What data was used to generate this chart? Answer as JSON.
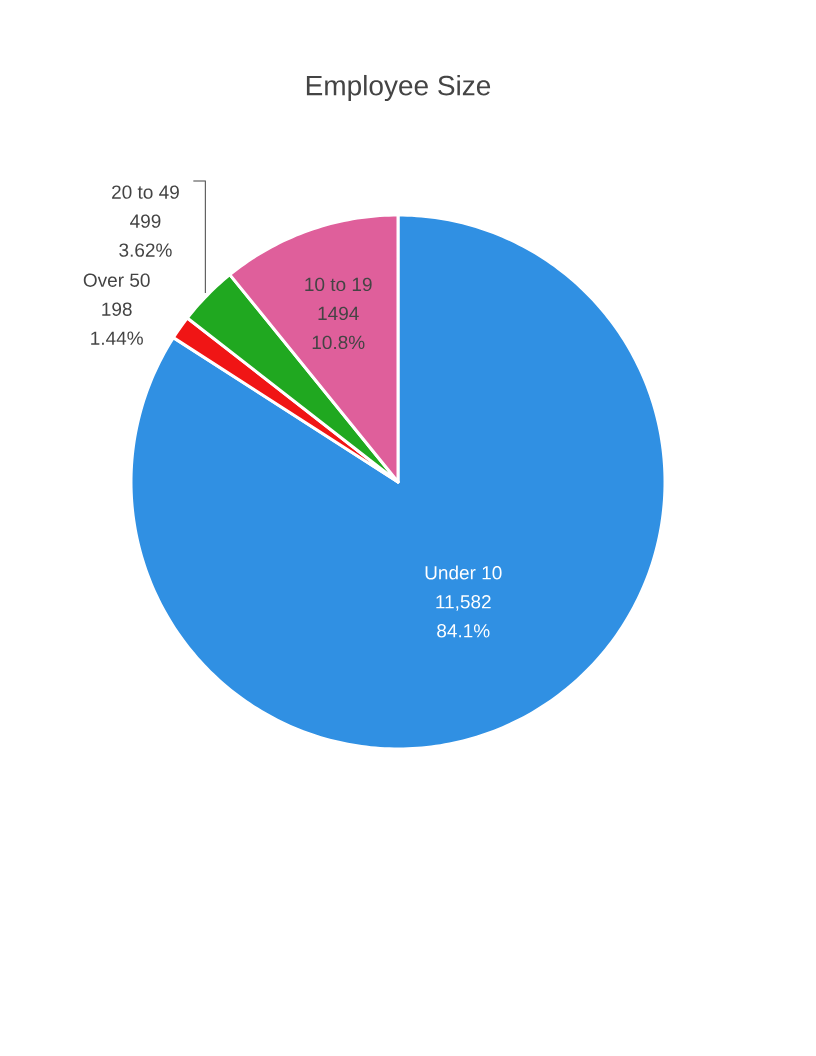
{
  "chart_data": {
    "type": "pie",
    "title": "Employee Size",
    "categories": [
      "Under 10",
      "Over 50",
      "20 to 49",
      "10 to 19"
    ],
    "values": [
      11582,
      198,
      499,
      1494
    ],
    "colors": [
      "#3090e3",
      "#f01515",
      "#20a820",
      "#df5f9b"
    ],
    "value_labels": [
      "11,582",
      "198",
      "499",
      "1494"
    ],
    "annotations": [
      "84.1%",
      "1.44%",
      "3.62%",
      "10.8%"
    ]
  }
}
